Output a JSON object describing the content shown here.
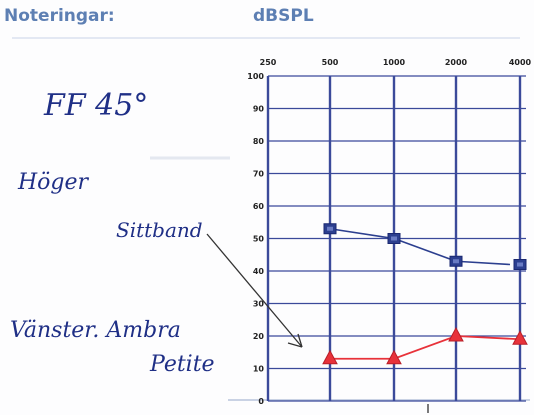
{
  "header": {
    "notes_label": "Noteringar:",
    "unit_label": "dBSPL"
  },
  "handwriting": {
    "line1": "FF 45°",
    "line2": "Höger",
    "line3": "Sittband",
    "line4": "Vänster. Ambra",
    "line5": "Petite"
  },
  "chart_data": {
    "type": "line",
    "title": "",
    "xlabel": "",
    "ylabel": "dBSPL",
    "x": [
      500,
      1000,
      2000,
      4000
    ],
    "x_tick_labels": [
      "250",
      "500",
      "1000",
      "2000",
      "4000"
    ],
    "y_tick_labels": [
      "0",
      "10",
      "20",
      "30",
      "40",
      "50",
      "60",
      "70",
      "80",
      "90",
      "100"
    ],
    "ylim": [
      0,
      100
    ],
    "grid": true,
    "series": [
      {
        "name": "",
        "marker": "square",
        "color": "#2c3f8f",
        "values": [
          53,
          50,
          43,
          42
        ]
      },
      {
        "name": "",
        "marker": "triangle",
        "color": "#e8323a",
        "values": [
          13,
          13,
          20,
          19
        ]
      }
    ]
  }
}
